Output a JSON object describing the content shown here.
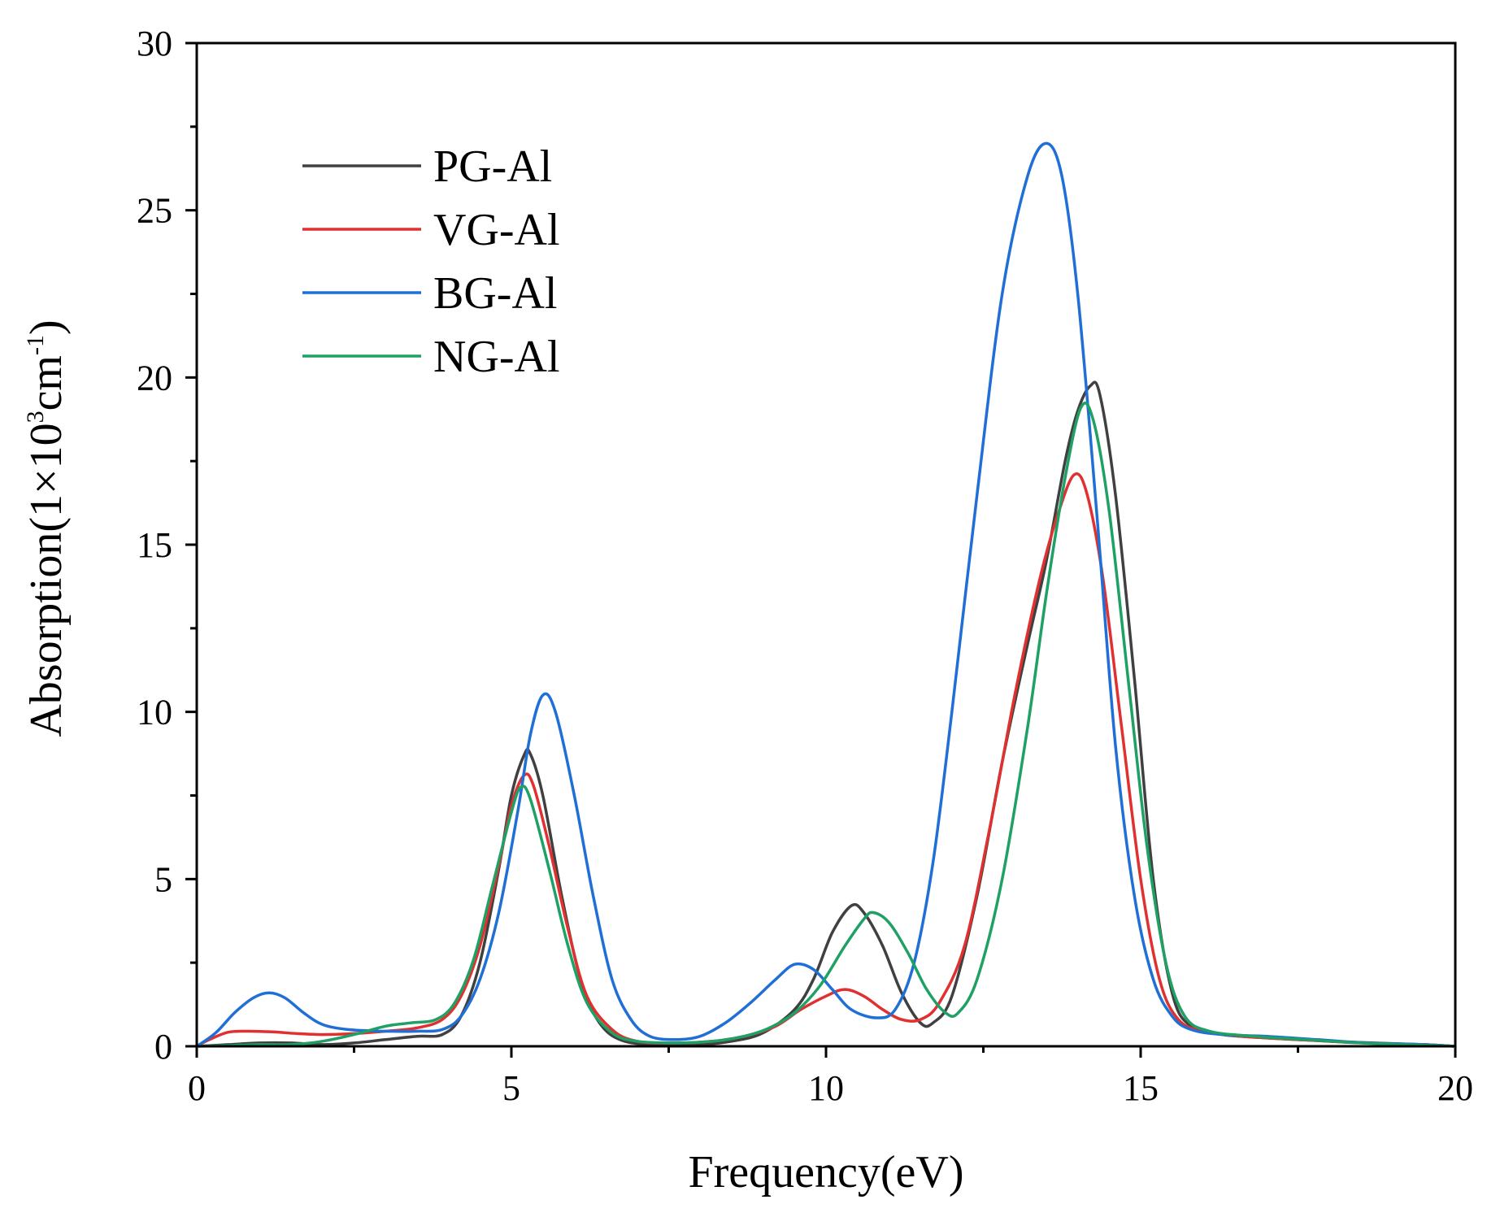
{
  "chart_data": {
    "type": "line",
    "xlabel": "Frequency(eV)",
    "ylabel": {
      "prefix": "Absorption(1×10",
      "sup1": "3",
      "mid": "cm",
      "sup2": "-1",
      "suffix": ")"
    },
    "xlim": [
      0,
      20
    ],
    "ylim": [
      0,
      30
    ],
    "x_ticks": [
      0,
      5,
      10,
      15,
      20
    ],
    "y_ticks": [
      0,
      5,
      10,
      15,
      20,
      25,
      30
    ],
    "grid": false,
    "legend_position": "top-left",
    "series": [
      {
        "name": "PG-Al",
        "color": "#404040",
        "points": [
          [
            0,
            0
          ],
          [
            0.5,
            0.05
          ],
          [
            1,
            0.1
          ],
          [
            1.5,
            0.1
          ],
          [
            2,
            0.05
          ],
          [
            2.5,
            0.1
          ],
          [
            3,
            0.2
          ],
          [
            3.5,
            0.3
          ],
          [
            3.9,
            0.35
          ],
          [
            4.2,
            0.9
          ],
          [
            4.5,
            2.5
          ],
          [
            4.8,
            5.3
          ],
          [
            5.0,
            7.5
          ],
          [
            5.2,
            8.7
          ],
          [
            5.3,
            8.75
          ],
          [
            5.5,
            7.5
          ],
          [
            5.8,
            4.5
          ],
          [
            6.1,
            2.0
          ],
          [
            6.4,
            0.7
          ],
          [
            6.8,
            0.15
          ],
          [
            7.5,
            0.05
          ],
          [
            8,
            0.05
          ],
          [
            8.5,
            0.15
          ],
          [
            9,
            0.4
          ],
          [
            9.5,
            1.1
          ],
          [
            9.8,
            2.0
          ],
          [
            10.1,
            3.4
          ],
          [
            10.4,
            4.2
          ],
          [
            10.6,
            4.0
          ],
          [
            10.9,
            3.0
          ],
          [
            11.2,
            1.6
          ],
          [
            11.5,
            0.7
          ],
          [
            11.7,
            0.7
          ],
          [
            12.0,
            1.5
          ],
          [
            12.4,
            4.5
          ],
          [
            12.8,
            8.5
          ],
          [
            13.2,
            12.0
          ],
          [
            13.5,
            14.5
          ],
          [
            13.8,
            17.5
          ],
          [
            14.0,
            19.0
          ],
          [
            14.2,
            19.75
          ],
          [
            14.35,
            19.5
          ],
          [
            14.6,
            16.5
          ],
          [
            14.9,
            11.0
          ],
          [
            15.2,
            5.0
          ],
          [
            15.5,
            1.6
          ],
          [
            15.8,
            0.6
          ],
          [
            16.3,
            0.35
          ],
          [
            17,
            0.25
          ],
          [
            18,
            0.15
          ],
          [
            18.7,
            0.1
          ],
          [
            19.5,
            0.05
          ],
          [
            20,
            0
          ]
        ]
      },
      {
        "name": "VG-Al",
        "color": "#e03030",
        "points": [
          [
            0,
            0
          ],
          [
            0.2,
            0.2
          ],
          [
            0.5,
            0.42
          ],
          [
            0.8,
            0.45
          ],
          [
            1.2,
            0.43
          ],
          [
            1.6,
            0.38
          ],
          [
            2,
            0.35
          ],
          [
            2.5,
            0.38
          ],
          [
            3,
            0.45
          ],
          [
            3.5,
            0.55
          ],
          [
            3.9,
            0.8
          ],
          [
            4.2,
            1.5
          ],
          [
            4.5,
            3.0
          ],
          [
            4.8,
            5.4
          ],
          [
            5.0,
            7.2
          ],
          [
            5.2,
            8.1
          ],
          [
            5.35,
            7.8
          ],
          [
            5.6,
            6.0
          ],
          [
            5.9,
            3.5
          ],
          [
            6.2,
            1.5
          ],
          [
            6.6,
            0.5
          ],
          [
            7,
            0.15
          ],
          [
            7.6,
            0.1
          ],
          [
            8.2,
            0.15
          ],
          [
            8.7,
            0.3
          ],
          [
            9.2,
            0.6
          ],
          [
            9.6,
            1.1
          ],
          [
            10.0,
            1.5
          ],
          [
            10.3,
            1.7
          ],
          [
            10.6,
            1.5
          ],
          [
            10.9,
            1.1
          ],
          [
            11.2,
            0.8
          ],
          [
            11.5,
            0.8
          ],
          [
            11.8,
            1.3
          ],
          [
            12.2,
            3.0
          ],
          [
            12.6,
            6.5
          ],
          [
            13.0,
            10.5
          ],
          [
            13.4,
            14.0
          ],
          [
            13.7,
            16.0
          ],
          [
            13.95,
            17.1
          ],
          [
            14.15,
            16.5
          ],
          [
            14.4,
            14.0
          ],
          [
            14.7,
            9.5
          ],
          [
            15.0,
            5.0
          ],
          [
            15.3,
            2.0
          ],
          [
            15.6,
            0.8
          ],
          [
            16,
            0.45
          ],
          [
            16.6,
            0.3
          ],
          [
            17.5,
            0.2
          ],
          [
            18.5,
            0.1
          ],
          [
            19.5,
            0.05
          ],
          [
            20,
            0
          ]
        ]
      },
      {
        "name": "BG-Al",
        "color": "#1f6fd6",
        "points": [
          [
            0,
            0
          ],
          [
            0.3,
            0.4
          ],
          [
            0.6,
            1.0
          ],
          [
            0.9,
            1.45
          ],
          [
            1.15,
            1.6
          ],
          [
            1.4,
            1.45
          ],
          [
            1.7,
            1.0
          ],
          [
            2.0,
            0.65
          ],
          [
            2.4,
            0.5
          ],
          [
            3,
            0.45
          ],
          [
            3.5,
            0.45
          ],
          [
            3.9,
            0.5
          ],
          [
            4.2,
            0.9
          ],
          [
            4.5,
            2.0
          ],
          [
            4.8,
            4.0
          ],
          [
            5.1,
            7.0
          ],
          [
            5.3,
            9.3
          ],
          [
            5.5,
            10.5
          ],
          [
            5.7,
            10.0
          ],
          [
            6.0,
            7.5
          ],
          [
            6.3,
            4.5
          ],
          [
            6.6,
            2.0
          ],
          [
            6.9,
            0.8
          ],
          [
            7.2,
            0.3
          ],
          [
            7.6,
            0.2
          ],
          [
            8.0,
            0.3
          ],
          [
            8.4,
            0.7
          ],
          [
            8.8,
            1.3
          ],
          [
            9.2,
            2.0
          ],
          [
            9.5,
            2.45
          ],
          [
            9.8,
            2.3
          ],
          [
            10.1,
            1.7
          ],
          [
            10.4,
            1.1
          ],
          [
            10.8,
            0.85
          ],
          [
            11.1,
            1.1
          ],
          [
            11.4,
            2.5
          ],
          [
            11.7,
            5.5
          ],
          [
            12.0,
            10.0
          ],
          [
            12.4,
            16.5
          ],
          [
            12.8,
            22.5
          ],
          [
            13.2,
            26.0
          ],
          [
            13.5,
            27.0
          ],
          [
            13.75,
            26.0
          ],
          [
            14.0,
            22.5
          ],
          [
            14.3,
            16.0
          ],
          [
            14.6,
            9.0
          ],
          [
            14.9,
            4.5
          ],
          [
            15.2,
            2.0
          ],
          [
            15.5,
            0.9
          ],
          [
            15.8,
            0.5
          ],
          [
            16.3,
            0.35
          ],
          [
            17,
            0.3
          ],
          [
            17.8,
            0.2
          ],
          [
            18.6,
            0.1
          ],
          [
            19.5,
            0.05
          ],
          [
            20,
            0
          ]
        ]
      },
      {
        "name": "NG-Al",
        "color": "#1fa065",
        "points": [
          [
            0,
            0
          ],
          [
            0.5,
            0.02
          ],
          [
            1,
            0.05
          ],
          [
            1.5,
            0.05
          ],
          [
            2.0,
            0.15
          ],
          [
            2.5,
            0.35
          ],
          [
            3.0,
            0.6
          ],
          [
            3.4,
            0.7
          ],
          [
            3.8,
            0.8
          ],
          [
            4.1,
            1.3
          ],
          [
            4.4,
            2.6
          ],
          [
            4.7,
            4.8
          ],
          [
            5.0,
            7.0
          ],
          [
            5.15,
            7.75
          ],
          [
            5.3,
            7.4
          ],
          [
            5.6,
            5.3
          ],
          [
            5.9,
            3.0
          ],
          [
            6.2,
            1.3
          ],
          [
            6.6,
            0.4
          ],
          [
            7.0,
            0.15
          ],
          [
            7.6,
            0.1
          ],
          [
            8.2,
            0.15
          ],
          [
            8.7,
            0.3
          ],
          [
            9.1,
            0.55
          ],
          [
            9.5,
            1.0
          ],
          [
            9.9,
            1.8
          ],
          [
            10.3,
            3.0
          ],
          [
            10.6,
            3.8
          ],
          [
            10.75,
            4.0
          ],
          [
            11.0,
            3.7
          ],
          [
            11.3,
            2.8
          ],
          [
            11.6,
            1.7
          ],
          [
            11.9,
            1.0
          ],
          [
            12.1,
            1.0
          ],
          [
            12.4,
            2.0
          ],
          [
            12.8,
            5.0
          ],
          [
            13.2,
            9.5
          ],
          [
            13.5,
            13.5
          ],
          [
            13.8,
            17.0
          ],
          [
            14.05,
            19.1
          ],
          [
            14.25,
            18.7
          ],
          [
            14.5,
            16.0
          ],
          [
            14.8,
            11.0
          ],
          [
            15.1,
            6.0
          ],
          [
            15.4,
            2.5
          ],
          [
            15.7,
            0.9
          ],
          [
            16.1,
            0.45
          ],
          [
            16.8,
            0.3
          ],
          [
            17.6,
            0.2
          ],
          [
            18.5,
            0.1
          ],
          [
            19.5,
            0.03
          ],
          [
            20,
            0
          ]
        ]
      }
    ]
  }
}
